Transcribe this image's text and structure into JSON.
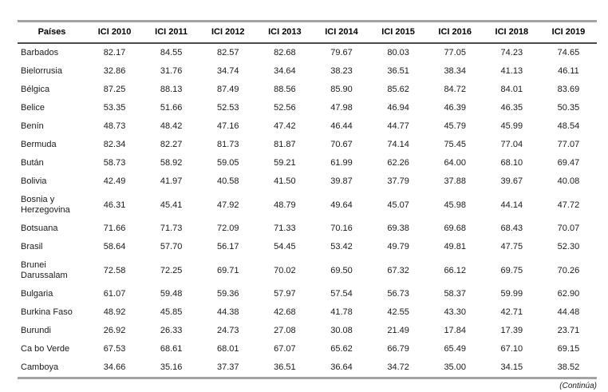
{
  "table": {
    "columns": [
      "Países",
      "ICI 2010",
      "ICI 2011",
      "ICI 2012",
      "ICI 2013",
      "ICI 2014",
      "ICI 2015",
      "ICI 2016",
      "ICI 2018",
      "ICI 2019"
    ],
    "rows": [
      {
        "name": "Barbados",
        "values": [
          "82.17",
          "84.55",
          "82.57",
          "82.68",
          "79.67",
          "80.03",
          "77.05",
          "74.23",
          "74.65"
        ]
      },
      {
        "name": "Bielorrusia",
        "values": [
          "32.86",
          "31.76",
          "34.74",
          "34.64",
          "38.23",
          "36.51",
          "38.34",
          "41.13",
          "46.11"
        ]
      },
      {
        "name": "Bélgica",
        "values": [
          "87.25",
          "88.13",
          "87.49",
          "88.56",
          "85.90",
          "85.62",
          "84.72",
          "84.01",
          "83.69"
        ]
      },
      {
        "name": "Belice",
        "values": [
          "53.35",
          "51.66",
          "52.53",
          "52.56",
          "47.98",
          "46.94",
          "46.39",
          "46.35",
          "50.35"
        ]
      },
      {
        "name": "Benín",
        "values": [
          "48.73",
          "48.42",
          "47.16",
          "47.42",
          "46.44",
          "44.77",
          "45.79",
          "45.99",
          "48.54"
        ]
      },
      {
        "name": "Bermuda",
        "values": [
          "82.34",
          "82.27",
          "81.73",
          "81.87",
          "70.67",
          "74.14",
          "75.45",
          "77.04",
          "77.07"
        ]
      },
      {
        "name": "Bután",
        "values": [
          "58.73",
          "58.92",
          "59.05",
          "59.21",
          "61.99",
          "62.26",
          "64.00",
          "68.10",
          "69.47"
        ]
      },
      {
        "name": "Bolivia",
        "values": [
          "42.49",
          "41.97",
          "40.58",
          "41.50",
          "39.87",
          "37.79",
          "37.88",
          "39.67",
          "40.08"
        ]
      },
      {
        "name": "Bosnia y Herzegovina",
        "values": [
          "46.31",
          "45.41",
          "47.92",
          "48.79",
          "49.64",
          "45.07",
          "45.98",
          "44.14",
          "47.72"
        ]
      },
      {
        "name": "Botsuana",
        "values": [
          "71.66",
          "71.73",
          "72.09",
          "71.33",
          "70.16",
          "69.38",
          "69.68",
          "68.43",
          "70.07"
        ]
      },
      {
        "name": "Brasil",
        "values": [
          "58.64",
          "57.70",
          "56.17",
          "54.45",
          "53.42",
          "49.79",
          "49.81",
          "47.75",
          "52.30"
        ]
      },
      {
        "name": "Brunei Darussalam",
        "values": [
          "72.58",
          "72.25",
          "69.71",
          "70.02",
          "69.50",
          "67.32",
          "66.12",
          "69.75",
          "70.26"
        ]
      },
      {
        "name": "Bulgaria",
        "values": [
          "61.07",
          "59.48",
          "59.36",
          "57.97",
          "57.54",
          "56.73",
          "58.37",
          "59.99",
          "62.90"
        ]
      },
      {
        "name": "Burkina Faso",
        "values": [
          "48.92",
          "45.85",
          "44.38",
          "42.68",
          "41.78",
          "42.55",
          "43.30",
          "42.71",
          "44.48"
        ]
      },
      {
        "name": "Burundi",
        "values": [
          "26.92",
          "26.33",
          "24.73",
          "27.08",
          "30.08",
          "21.49",
          "17.84",
          "17.39",
          "23.71"
        ]
      },
      {
        "name": "Ca bo Verde",
        "values": [
          "67.53",
          "68.61",
          "68.01",
          "67.07",
          "65.62",
          "66.79",
          "65.49",
          "67.10",
          "69.15"
        ]
      },
      {
        "name": "Camboya",
        "values": [
          "34.66",
          "35.16",
          "37.37",
          "36.51",
          "36.64",
          "34.72",
          "35.00",
          "34.15",
          "38.52"
        ]
      }
    ]
  },
  "footer": {
    "continua": "(Continúa)"
  },
  "colors": {
    "outer_border": "#a3a3a3",
    "header_underline": "#4a4a4a",
    "text": "#1a1a1a"
  }
}
